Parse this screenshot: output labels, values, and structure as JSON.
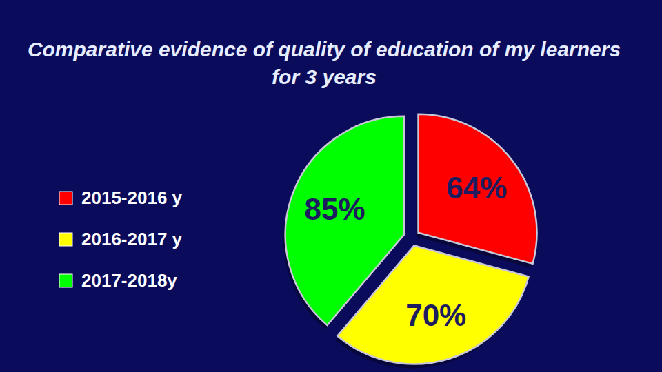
{
  "chart_data": {
    "type": "pie",
    "title": "Comparative evidence of quality of education of my learners for 3 years",
    "categories": [
      "2015-2016 y",
      "2016-2017 y",
      "2017-2018y"
    ],
    "values": [
      64,
      70,
      85
    ],
    "value_labels": [
      "64%",
      "70%",
      "85%"
    ],
    "colors": [
      "#ff0000",
      "#ffff00",
      "#00ff00"
    ],
    "data_labels": true,
    "legend": "left"
  }
}
